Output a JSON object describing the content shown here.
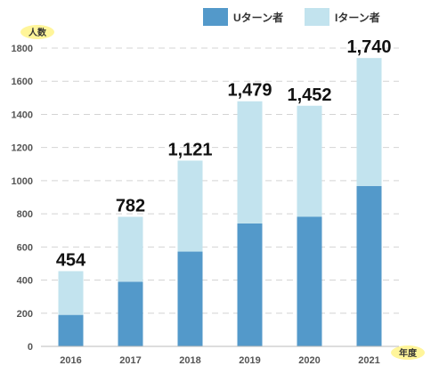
{
  "chart_data": {
    "type": "bar",
    "stacked": true,
    "categories": [
      "2016",
      "2017",
      "2018",
      "2019",
      "2020",
      "2021"
    ],
    "series": [
      {
        "name": "Uターン者",
        "values": [
          190,
          390,
          572,
          742,
          783,
          968
        ],
        "color": "#5399CA"
      },
      {
        "name": "Iターン者",
        "values": [
          264,
          392,
          549,
          737,
          669,
          772
        ],
        "color": "#C2E3EE"
      }
    ],
    "totals": [
      "454",
      "782",
      "1,121",
      "1,479",
      "1,452",
      "1,740"
    ],
    "ylabel": "人数",
    "xlabel": "年度",
    "ylim": [
      0,
      1800
    ],
    "yticks": [
      "0",
      "200",
      "400",
      "600",
      "800",
      "1000",
      "1200",
      "1400",
      "1600",
      "1800"
    ],
    "grid": true,
    "legend_position": "top-right",
    "label_badge_color": "#FFF59A"
  }
}
